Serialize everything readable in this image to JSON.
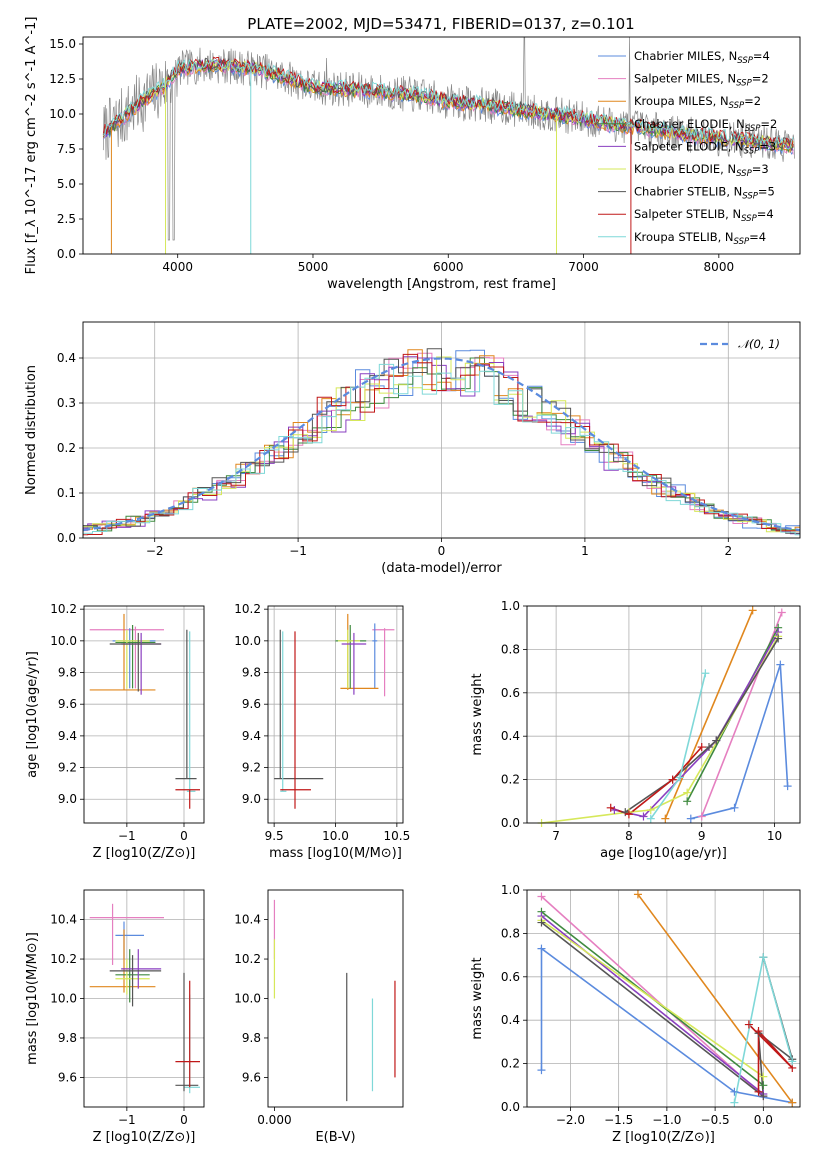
{
  "figure": {
    "title": "PLATE=2002, MJD=53471, FIBERID=0137, z=0.101"
  },
  "colors": {
    "Chabrier MILES": "#5b8bde",
    "Salpeter MILES": "#e57fc0",
    "Kroupa MILES": "#e0871e",
    "Chabrier ELODIE": "#3f8a3f",
    "Salpeter ELODIE": "#8a3fc0",
    "Kroupa ELODIE": "#d6e85a",
    "Chabrier STELIB": "#555555",
    "Salpeter STELIB": "#c01818",
    "Kroupa STELIB": "#7fd8d8",
    "data": "#888888",
    "normal": "#5b8bde"
  },
  "chart_data": [
    {
      "id": "spectrum",
      "type": "line",
      "title": "PLATE=2002, MJD=53471, FIBERID=0137, z=0.101",
      "xlabel": "wavelength [Angstrom, rest frame]",
      "ylabel": "Flux [f_λ 10^-17 erg cm^-2 s^-1 A^-1]",
      "xlim": [
        3300,
        8600
      ],
      "ylim": [
        0,
        15.5
      ],
      "xticks": [
        "4000",
        "5000",
        "6000",
        "7000",
        "8000"
      ],
      "yticks": [
        "0.0",
        "2.5",
        "5.0",
        "7.5",
        "10.0",
        "12.5",
        "15.0"
      ],
      "legend": [
        {
          "name": "Chabrier MILES",
          "nssp": "4"
        },
        {
          "name": "Salpeter MILES",
          "nssp": "2"
        },
        {
          "name": "Kroupa MILES",
          "nssp": "2"
        },
        {
          "name": "Chabrier ELODIE",
          "nssp": "2"
        },
        {
          "name": "Salpeter ELODIE",
          "nssp": "3"
        },
        {
          "name": "Kroupa ELODIE",
          "nssp": "3"
        },
        {
          "name": "Chabrier STELIB",
          "nssp": "5"
        },
        {
          "name": "Salpeter STELIB",
          "nssp": "4"
        },
        {
          "name": "Kroupa STELIB",
          "nssp": "4"
        }
      ],
      "legend_position": "top-right",
      "model_continuum": [
        [
          3450,
          8.6
        ],
        [
          3600,
          9.8
        ],
        [
          3750,
          11.0
        ],
        [
          3900,
          12.0
        ],
        [
          4000,
          13.2
        ],
        [
          4200,
          13.5
        ],
        [
          4400,
          13.4
        ],
        [
          4600,
          13.2
        ],
        [
          4800,
          12.6
        ],
        [
          5000,
          11.9
        ],
        [
          5200,
          11.8
        ],
        [
          5500,
          11.6
        ],
        [
          5800,
          11.3
        ],
        [
          6000,
          10.9
        ],
        [
          6300,
          10.6
        ],
        [
          6600,
          10.2
        ],
        [
          6900,
          9.8
        ],
        [
          7200,
          9.3
        ],
        [
          7500,
          8.9
        ],
        [
          7800,
          8.5
        ],
        [
          8100,
          8.2
        ],
        [
          8400,
          7.9
        ],
        [
          8550,
          7.7
        ]
      ],
      "grid": false
    },
    {
      "id": "residuals",
      "type": "line",
      "xlabel": "(data-model)/error",
      "ylabel": "Normed distribution",
      "xlim": [
        -2.5,
        2.5
      ],
      "ylim": [
        0,
        0.48
      ],
      "xticks": [
        "−2",
        "−1",
        "0",
        "1",
        "2"
      ],
      "yticks": [
        "0.0",
        "0.1",
        "0.2",
        "0.3",
        "0.4"
      ],
      "legend": "𝒩(0, 1)",
      "legend_position": "top-right",
      "grid": true
    },
    {
      "id": "age_vs_Z",
      "type": "scatter",
      "xlabel": "Z [log10(Z/Z⊙)]",
      "ylabel": "age [log10(age/yr)]",
      "xlim": [
        -1.75,
        0.35
      ],
      "ylim": [
        8.85,
        10.22
      ],
      "xticks": [
        "−1",
        "0"
      ],
      "yticks": [
        "9.0",
        "9.2",
        "9.4",
        "9.6",
        "9.8",
        "10.0",
        "10.2"
      ],
      "points": [
        {
          "model": "Salpeter MILES",
          "x": -0.85,
          "y": 10.07,
          "xmin": -1.65,
          "xmax": -0.35,
          "ymin": 9.7,
          "ymax": 10.09
        },
        {
          "model": "Kroupa MILES",
          "x": -1.05,
          "y": 9.69,
          "xmin": -1.65,
          "xmax": -0.5,
          "ymin": 9.69,
          "ymax": 10.17
        },
        {
          "model": "Chabrier MILES",
          "x": -0.95,
          "y": 10.0,
          "xmin": -1.25,
          "xmax": -0.5,
          "ymin": 9.7,
          "ymax": 10.08
        },
        {
          "model": "Chabrier ELODIE",
          "x": -0.9,
          "y": 9.99,
          "xmin": -1.2,
          "xmax": -0.5,
          "ymin": 9.7,
          "ymax": 10.1
        },
        {
          "model": "Kroupa ELODIE",
          "x": -1.0,
          "y": 10.0,
          "xmin": -1.2,
          "xmax": -0.6,
          "ymin": 9.7,
          "ymax": 10.07
        },
        {
          "model": "Salpeter ELODIE",
          "x": -0.75,
          "y": 9.98,
          "xmin": -1.1,
          "xmax": -0.4,
          "ymin": 9.66,
          "ymax": 10.05
        },
        {
          "model": "Chabrier STELIB",
          "x": -0.8,
          "y": 9.98,
          "xmin": -1.3,
          "xmax": -0.4,
          "ymin": 9.68,
          "ymax": 10.05
        },
        {
          "model": "Kroupa STELIB",
          "x": 0.1,
          "y": 9.05,
          "xmin": 0.05,
          "xmax": 0.2,
          "ymin": 9.05,
          "ymax": 10.06
        },
        {
          "model": "Chabrier STELIB",
          "x": 0.05,
          "y": 9.13,
          "xmin": -0.15,
          "xmax": 0.22,
          "ymin": 9.13,
          "ymax": 10.07
        },
        {
          "model": "Salpeter STELIB",
          "x": 0.1,
          "y": 9.06,
          "xmin": -0.15,
          "xmax": 0.28,
          "ymin": 8.94,
          "ymax": 9.06
        }
      ],
      "grid": true
    },
    {
      "id": "age_vs_mass",
      "type": "scatter",
      "xlabel": "mass [log10(M/M⊙)]",
      "ylabel": "",
      "xlim": [
        9.45,
        10.55
      ],
      "ylim": [
        8.85,
        10.22
      ],
      "xticks": [
        "9.5",
        "10.0",
        "10.5"
      ],
      "yticks": [
        "9.0",
        "9.2",
        "9.4",
        "9.6",
        "9.8",
        "10.0",
        "10.2"
      ],
      "points": [
        {
          "model": "Salpeter MILES",
          "x": 10.4,
          "y": 10.07,
          "xmin": 10.3,
          "xmax": 10.48,
          "ymin": 9.65,
          "ymax": 10.08
        },
        {
          "model": "Chabrier MILES",
          "x": 10.32,
          "y": 10.0,
          "xmin": 10.3,
          "xmax": 10.34,
          "ymin": 9.7,
          "ymax": 10.11
        },
        {
          "model": "Kroupa MILES",
          "x": 10.1,
          "y": 9.7,
          "xmin": 10.04,
          "xmax": 10.35,
          "ymin": 9.69,
          "ymax": 10.17
        },
        {
          "model": "Chabrier ELODIE",
          "x": 10.12,
          "y": 10.0,
          "xmin": 10.0,
          "xmax": 10.25,
          "ymin": 9.7,
          "ymax": 10.1
        },
        {
          "model": "Kroupa ELODIE",
          "x": 10.1,
          "y": 10.0,
          "xmin": 10.02,
          "xmax": 10.2,
          "ymin": 9.7,
          "ymax": 10.07
        },
        {
          "model": "Salpeter ELODIE",
          "x": 10.15,
          "y": 9.98,
          "xmin": 10.05,
          "xmax": 10.25,
          "ymin": 9.66,
          "ymax": 10.05
        },
        {
          "model": "Chabrier STELIB",
          "x": 9.55,
          "y": 9.13,
          "xmin": 9.5,
          "xmax": 9.9,
          "ymin": 9.13,
          "ymax": 10.07
        },
        {
          "model": "Kroupa STELIB",
          "x": 9.57,
          "y": 9.05,
          "xmin": 9.55,
          "xmax": 9.6,
          "ymin": 9.05,
          "ymax": 10.06
        },
        {
          "model": "Salpeter STELIB",
          "x": 9.67,
          "y": 9.06,
          "xmin": 9.55,
          "xmax": 9.8,
          "ymin": 8.94,
          "ymax": 10.06
        }
      ],
      "grid": true
    },
    {
      "id": "massweight_vs_age",
      "type": "line",
      "xlabel": "age [log10(age/yr)]",
      "ylabel": "mass weight",
      "xlim": [
        6.6,
        10.35
      ],
      "ylim": [
        0,
        1.0
      ],
      "xticks": [
        "7",
        "8",
        "9",
        "10"
      ],
      "yticks": [
        "0.0",
        "0.2",
        "0.4",
        "0.6",
        "0.8",
        "1.0"
      ],
      "series": [
        {
          "model": "Chabrier MILES",
          "points": [
            [
              8.85,
              0.02
            ],
            [
              9.45,
              0.07
            ],
            [
              10.08,
              0.73
            ],
            [
              10.18,
              0.17
            ]
          ]
        },
        {
          "model": "Salpeter MILES",
          "points": [
            [
              9.0,
              0.03
            ],
            [
              10.1,
              0.97
            ]
          ]
        },
        {
          "model": "Kroupa MILES",
          "points": [
            [
              8.5,
              0.02
            ],
            [
              9.7,
              0.98
            ]
          ]
        },
        {
          "model": "Chabrier ELODIE",
          "points": [
            [
              8.8,
              0.1
            ],
            [
              10.05,
              0.9
            ]
          ]
        },
        {
          "model": "Salpeter ELODIE",
          "points": [
            [
              7.8,
              0.06
            ],
            [
              8.2,
              0.03
            ],
            [
              9.2,
              0.38
            ],
            [
              10.05,
              0.88
            ]
          ]
        },
        {
          "model": "Kroupa ELODIE",
          "points": [
            [
              6.8,
              0.0
            ],
            [
              8.0,
              0.05
            ],
            [
              8.3,
              0.06
            ],
            [
              8.8,
              0.14
            ],
            [
              10.05,
              0.86
            ]
          ]
        },
        {
          "model": "Chabrier STELIB",
          "points": [
            [
              7.95,
              0.05
            ],
            [
              8.6,
              0.2
            ],
            [
              9.1,
              0.35
            ],
            [
              9.2,
              0.38
            ],
            [
              10.05,
              0.85
            ]
          ]
        },
        {
          "model": "Salpeter STELIB",
          "points": [
            [
              7.75,
              0.07
            ],
            [
              8.0,
              0.04
            ],
            [
              8.6,
              0.2
            ],
            [
              9.0,
              0.35
            ]
          ]
        },
        {
          "model": "Kroupa STELIB",
          "points": [
            [
              8.3,
              0.02
            ],
            [
              8.7,
              0.21
            ],
            [
              9.05,
              0.69
            ]
          ]
        }
      ],
      "grid": true
    },
    {
      "id": "mass_vs_Z",
      "type": "scatter",
      "xlabel": "Z [log10(Z/Z⊙)]",
      "ylabel": "mass [log10(M/M⊙)]",
      "xlim": [
        -1.75,
        0.35
      ],
      "ylim": [
        9.45,
        10.55
      ],
      "xticks": [
        "−1",
        "0"
      ],
      "yticks": [
        "9.6",
        "9.8",
        "10.0",
        "10.2",
        "10.4"
      ],
      "points": [
        {
          "model": "Salpeter MILES",
          "x": -1.25,
          "y": 10.41,
          "xmin": -1.65,
          "xmax": -0.35,
          "ymin": 10.17,
          "ymax": 10.48
        },
        {
          "model": "Chabrier MILES",
          "x": -1.05,
          "y": 10.32,
          "xmin": -1.2,
          "xmax": -0.7,
          "ymin": 10.2,
          "ymax": 10.39
        },
        {
          "model": "Kroupa MILES",
          "x": -1.05,
          "y": 10.06,
          "xmin": -1.65,
          "xmax": -0.5,
          "ymin": 10.03,
          "ymax": 10.35
        },
        {
          "model": "Chabrier ELODIE",
          "x": -0.95,
          "y": 10.12,
          "xmin": -1.2,
          "xmax": -0.6,
          "ymin": 9.98,
          "ymax": 10.25
        },
        {
          "model": "Kroupa ELODIE",
          "x": -1.0,
          "y": 10.1,
          "xmin": -1.2,
          "xmax": -0.6,
          "ymin": 10.02,
          "ymax": 10.2
        },
        {
          "model": "Salpeter ELODIE",
          "x": -0.8,
          "y": 10.15,
          "xmin": -1.1,
          "xmax": -0.4,
          "ymin": 10.05,
          "ymax": 10.25
        },
        {
          "model": "Chabrier STELIB",
          "x": -0.9,
          "y": 10.14,
          "xmin": -1.3,
          "xmax": -0.4,
          "ymin": 9.96,
          "ymax": 10.22
        },
        {
          "model": "Kroupa STELIB",
          "x": 0.1,
          "y": 9.55,
          "xmin": 0.0,
          "xmax": 0.28,
          "ymin": 9.52,
          "ymax": 10.02
        },
        {
          "model": "Chabrier STELIB",
          "x": 0.0,
          "y": 9.56,
          "xmin": -0.15,
          "xmax": 0.25,
          "ymin": 9.53,
          "ymax": 10.13
        },
        {
          "model": "Salpeter STELIB",
          "x": 0.1,
          "y": 9.68,
          "xmin": -0.15,
          "xmax": 0.28,
          "ymin": 9.55,
          "ymax": 10.09
        }
      ],
      "grid": true
    },
    {
      "id": "mass_vs_ebv",
      "type": "scatter",
      "xlabel": "E(B-V)",
      "ylabel": "",
      "xlim": [
        -0.002,
        0.04
      ],
      "ylim": [
        9.45,
        10.55
      ],
      "xticks": [
        "0.000"
      ],
      "yticks": [
        "9.6",
        "9.8",
        "10.0",
        "10.2",
        "10.4"
      ],
      "points": [
        {
          "model": "Salpeter MILES",
          "x": 0.0,
          "y": 10.41,
          "xmin": 0.0,
          "xmax": 0.0,
          "ymin": 10.2,
          "ymax": 10.5
        },
        {
          "model": "Kroupa ELODIE",
          "x": 0.0,
          "y": 10.1,
          "xmin": 0.0,
          "xmax": 0.0,
          "ymin": 10.0,
          "ymax": 10.3
        },
        {
          "model": "Chabrier STELIB",
          "x": 0.0225,
          "y": 9.56,
          "xmin": 0.0225,
          "xmax": 0.0225,
          "ymin": 9.48,
          "ymax": 10.13
        },
        {
          "model": "Kroupa STELIB",
          "x": 0.0305,
          "y": 9.55,
          "xmin": 0.0305,
          "xmax": 0.0305,
          "ymin": 9.53,
          "ymax": 10.0
        },
        {
          "model": "Salpeter STELIB",
          "x": 0.0375,
          "y": 9.68,
          "xmin": 0.0375,
          "xmax": 0.0375,
          "ymin": 9.6,
          "ymax": 10.09
        }
      ],
      "grid": false
    },
    {
      "id": "massweight_vs_Z",
      "type": "line",
      "xlabel": "Z [log10(Z/Z⊙)]",
      "ylabel": "mass weight",
      "xlim": [
        -2.45,
        0.38
      ],
      "ylim": [
        0,
        1.0
      ],
      "xticks": [
        "−2.0",
        "−1.5",
        "−1.0",
        "−0.5",
        "0.0"
      ],
      "yticks": [
        "0.0",
        "0.2",
        "0.4",
        "0.6",
        "0.8",
        "1.0"
      ],
      "series": [
        {
          "model": "Chabrier MILES",
          "points": [
            [
              -2.3,
              0.17
            ],
            [
              -2.3,
              0.73
            ],
            [
              -0.3,
              0.07
            ],
            [
              0.3,
              0.02
            ]
          ]
        },
        {
          "model": "Salpeter MILES",
          "points": [
            [
              -2.3,
              0.97
            ],
            [
              0.0,
              0.05
            ]
          ]
        },
        {
          "model": "Kroupa MILES",
          "points": [
            [
              -1.3,
              0.98
            ],
            [
              0.3,
              0.02
            ]
          ]
        },
        {
          "model": "Chabrier ELODIE",
          "points": [
            [
              -2.3,
              0.9
            ],
            [
              0.0,
              0.1
            ]
          ]
        },
        {
          "model": "Salpeter ELODIE",
          "points": [
            [
              -2.3,
              0.88
            ],
            [
              0.0,
              0.06
            ]
          ]
        },
        {
          "model": "Kroupa ELODIE",
          "points": [
            [
              -2.3,
              0.86
            ],
            [
              0.0,
              0.14
            ]
          ]
        },
        {
          "model": "Chabrier STELIB",
          "points": [
            [
              -2.3,
              0.85
            ],
            [
              0.0,
              0.05
            ],
            [
              -0.05,
              0.34
            ],
            [
              0.3,
              0.22
            ],
            [
              0.0,
              0.69
            ]
          ]
        },
        {
          "model": "Salpeter STELIB",
          "points": [
            [
              -0.05,
              0.07
            ],
            [
              -0.05,
              0.35
            ],
            [
              0.3,
              0.18
            ],
            [
              -0.15,
              0.38
            ]
          ]
        },
        {
          "model": "Kroupa STELIB",
          "points": [
            [
              -0.3,
              0.02
            ],
            [
              0.0,
              0.69
            ],
            [
              0.3,
              0.21
            ]
          ]
        }
      ],
      "grid": true
    }
  ]
}
